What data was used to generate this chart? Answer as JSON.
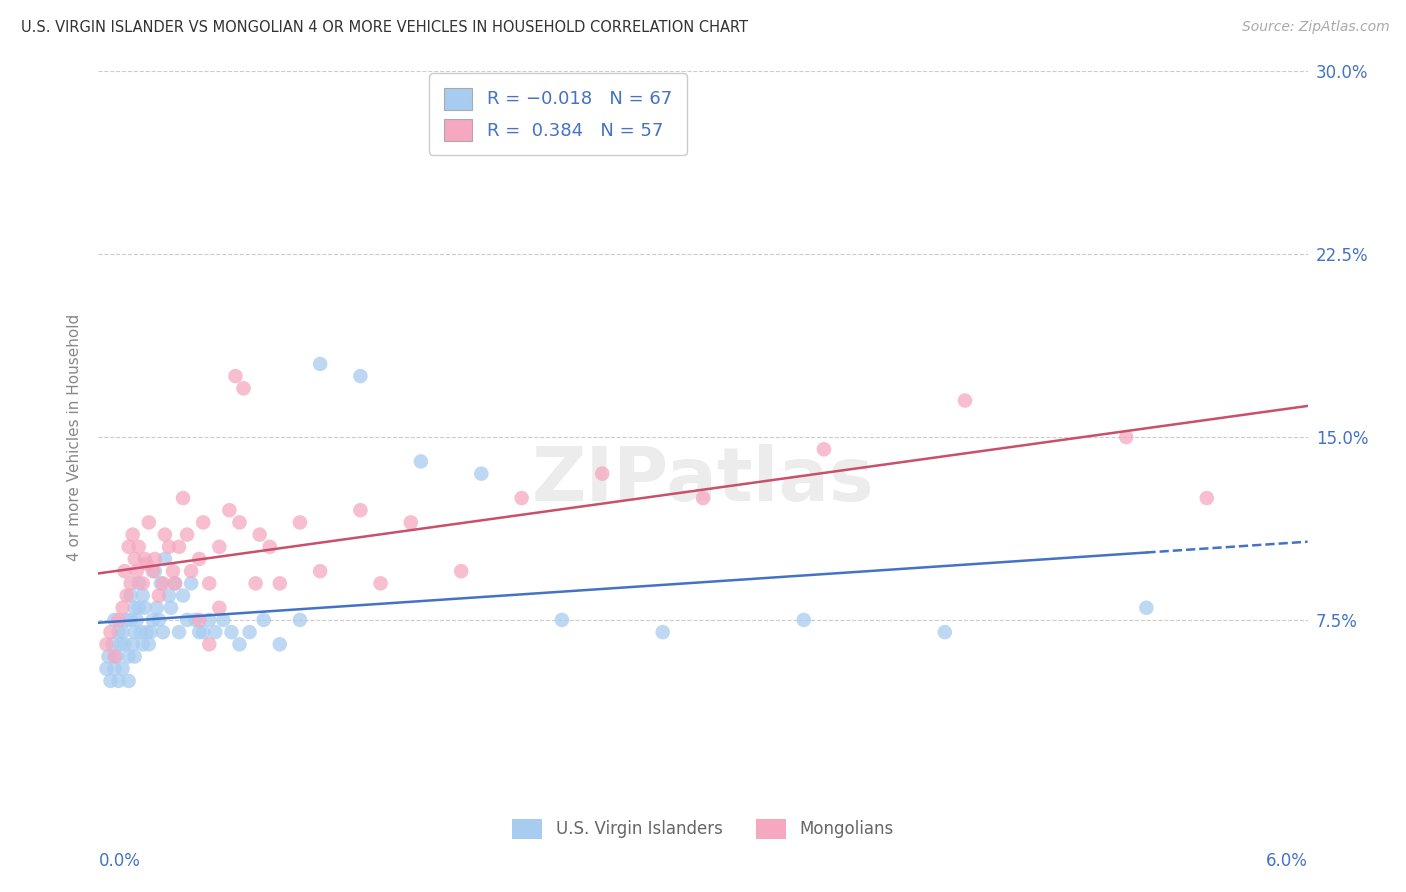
{
  "title": "U.S. VIRGIN ISLANDER VS MONGOLIAN 4 OR MORE VEHICLES IN HOUSEHOLD CORRELATION CHART",
  "source": "Source: ZipAtlas.com",
  "ylabel": "4 or more Vehicles in Household",
  "legend_label1": "U.S. Virgin Islanders",
  "legend_label2": "Mongolians",
  "color_blue_dot": "#A8CCF0",
  "color_pink_dot": "#F5A8C0",
  "color_blue_line": "#4472C4",
  "color_pink_line": "#C8506A",
  "color_grid": "#CCCCCC",
  "color_axis_label": "#4472C4",
  "background_color": "#FFFFFF",
  "xlim": [
    0.0,
    6.0
  ],
  "ylim": [
    0.0,
    30.0
  ],
  "y_grid": [
    0.0,
    7.5,
    15.0,
    22.5,
    30.0
  ],
  "blue_x": [
    0.04,
    0.05,
    0.06,
    0.07,
    0.08,
    0.08,
    0.09,
    0.1,
    0.1,
    0.11,
    0.12,
    0.12,
    0.13,
    0.14,
    0.15,
    0.15,
    0.16,
    0.16,
    0.17,
    0.18,
    0.18,
    0.18,
    0.19,
    0.2,
    0.2,
    0.21,
    0.22,
    0.22,
    0.23,
    0.24,
    0.25,
    0.26,
    0.27,
    0.28,
    0.29,
    0.3,
    0.31,
    0.32,
    0.33,
    0.35,
    0.36,
    0.38,
    0.4,
    0.42,
    0.44,
    0.46,
    0.48,
    0.5,
    0.52,
    0.55,
    0.58,
    0.62,
    0.66,
    0.7,
    0.75,
    0.82,
    0.9,
    1.0,
    1.1,
    1.3,
    1.6,
    1.9,
    2.3,
    2.8,
    3.5,
    4.2,
    5.2
  ],
  "blue_y": [
    5.5,
    6.0,
    5.0,
    6.5,
    7.5,
    5.5,
    6.0,
    7.0,
    5.0,
    6.5,
    7.0,
    5.5,
    6.5,
    7.5,
    6.0,
    5.0,
    7.5,
    8.5,
    6.5,
    7.0,
    6.0,
    8.0,
    7.5,
    9.0,
    8.0,
    7.0,
    8.5,
    6.5,
    8.0,
    7.0,
    6.5,
    7.0,
    7.5,
    9.5,
    8.0,
    7.5,
    9.0,
    7.0,
    10.0,
    8.5,
    8.0,
    9.0,
    7.0,
    8.5,
    7.5,
    9.0,
    7.5,
    7.0,
    7.0,
    7.5,
    7.0,
    7.5,
    7.0,
    6.5,
    7.0,
    7.5,
    6.5,
    7.5,
    18.0,
    17.5,
    14.0,
    13.5,
    7.5,
    7.0,
    7.5,
    7.0,
    8.0
  ],
  "pink_x": [
    0.04,
    0.06,
    0.08,
    0.1,
    0.12,
    0.13,
    0.14,
    0.15,
    0.16,
    0.17,
    0.18,
    0.19,
    0.2,
    0.22,
    0.23,
    0.24,
    0.25,
    0.27,
    0.28,
    0.3,
    0.32,
    0.33,
    0.35,
    0.37,
    0.38,
    0.4,
    0.42,
    0.44,
    0.46,
    0.5,
    0.52,
    0.55,
    0.6,
    0.65,
    0.7,
    0.78,
    0.85,
    0.9,
    1.0,
    1.1,
    1.3,
    1.55,
    1.8,
    2.1,
    2.5,
    3.0,
    3.6,
    4.3,
    5.1,
    5.5,
    0.68,
    0.72,
    0.6,
    0.5,
    0.55,
    0.8,
    1.4
  ],
  "pink_y": [
    6.5,
    7.0,
    6.0,
    7.5,
    8.0,
    9.5,
    8.5,
    10.5,
    9.0,
    11.0,
    10.0,
    9.5,
    10.5,
    9.0,
    10.0,
    9.8,
    11.5,
    9.5,
    10.0,
    8.5,
    9.0,
    11.0,
    10.5,
    9.5,
    9.0,
    10.5,
    12.5,
    11.0,
    9.5,
    10.0,
    11.5,
    9.0,
    10.5,
    12.0,
    11.5,
    9.0,
    10.5,
    9.0,
    11.5,
    9.5,
    12.0,
    11.5,
    9.5,
    12.5,
    13.5,
    12.5,
    14.5,
    16.5,
    15.0,
    12.5,
    17.5,
    17.0,
    8.0,
    7.5,
    6.5,
    11.0,
    9.0
  ]
}
